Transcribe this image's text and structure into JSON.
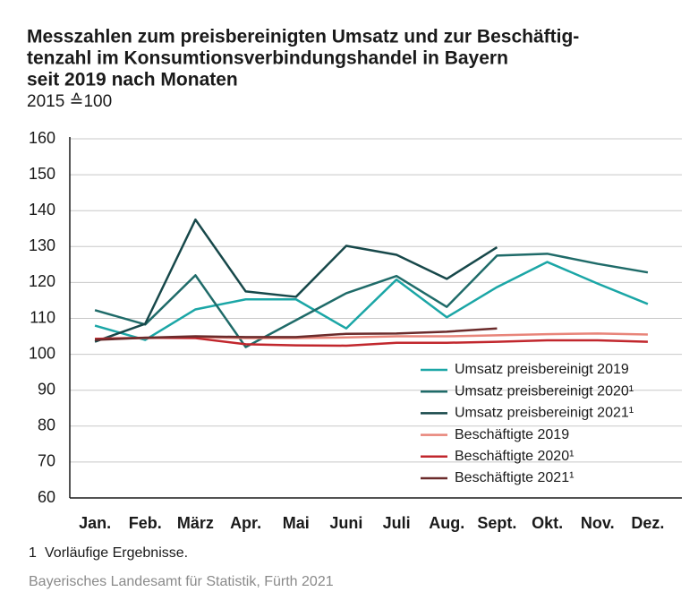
{
  "chart_data": {
    "type": "line",
    "title_lines": [
      "Messzahlen zum preisbereinigten Umsatz und zur Beschäftig-",
      "tenzahl im Konsumtionsverbindungshandel in Bayern",
      "seit 2019 nach Monaten"
    ],
    "subtitle": "2015 ≙100",
    "categories": [
      "Jan.",
      "Feb.",
      "März",
      "Apr.",
      "Mai",
      "Juni",
      "Juli",
      "Aug.",
      "Sept.",
      "Okt.",
      "Nov.",
      "Dez."
    ],
    "series": [
      {
        "name": "Umsatz preisbereinigt 2019",
        "color": "#1ba6a6",
        "values": [
          108,
          104,
          112.5,
          115.3,
          115.3,
          107.2,
          120.8,
          110.3,
          118.7,
          125.7,
          119.7,
          114
        ]
      },
      {
        "name": "Umsatz preisbereinigt 2020¹",
        "color": "#1f6b69",
        "values": [
          112.3,
          108.3,
          122,
          102,
          109.5,
          117,
          121.8,
          113.2,
          127.5,
          128,
          125.2,
          122.8
        ]
      },
      {
        "name": "Umsatz preisbereinigt 2021¹",
        "color": "#17484a",
        "values": [
          103.5,
          108.5,
          137.5,
          117.5,
          116,
          130.2,
          127.7,
          121,
          129.8,
          null,
          null,
          null
        ]
      },
      {
        "name": "Beschäftigte 2019",
        "color": "#e8857a",
        "values": [
          104.3,
          104.5,
          104.8,
          104.5,
          104.5,
          104.7,
          105,
          105,
          105.3,
          105.6,
          105.8,
          105.5
        ]
      },
      {
        "name": "Beschäftigte 2020¹",
        "color": "#c1272d",
        "values": [
          104.3,
          104.6,
          104.5,
          102.8,
          102.5,
          102.4,
          103.2,
          103.2,
          103.5,
          103.9,
          103.9,
          103.5
        ]
      },
      {
        "name": "Beschäftigte 2021¹",
        "color": "#6b2b2b",
        "values": [
          104,
          104.6,
          105,
          104.8,
          104.8,
          105.7,
          105.8,
          106.3,
          107.2,
          null,
          null,
          null
        ]
      }
    ],
    "ylim": [
      60,
      160
    ],
    "yticks": [
      60,
      70,
      80,
      90,
      100,
      110,
      120,
      130,
      140,
      150,
      160
    ],
    "grid": true,
    "legend": "lower right",
    "footnote": {
      "marker": "1",
      "text": "Vorläufige Ergebnisse."
    },
    "source": "Bayerisches Landesamt für Statistik, Fürth 2021"
  }
}
